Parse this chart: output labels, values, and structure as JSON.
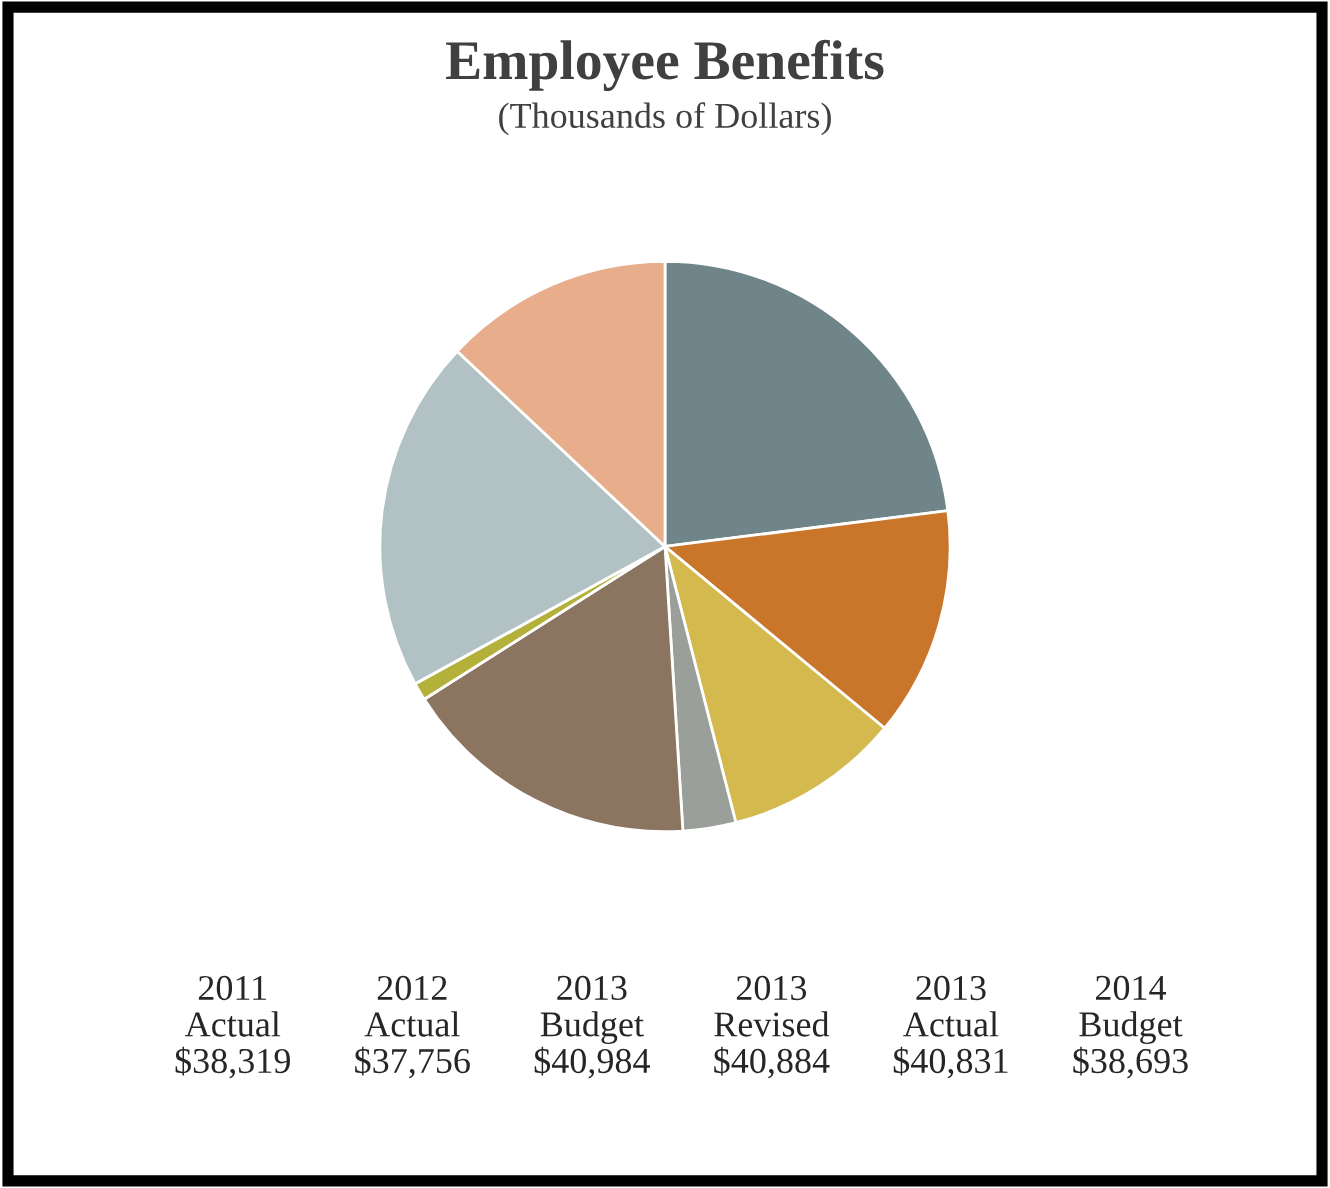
{
  "chart_data": {
    "type": "pie",
    "title": "Employee Benefits",
    "subtitle": "(Thousands of Dollars)",
    "categories": [
      null,
      null,
      null,
      null,
      null,
      null,
      null,
      null
    ],
    "values": [
      23,
      13,
      10,
      3,
      17,
      1,
      20,
      13
    ],
    "colors": [
      "#6f8589",
      "#c9762b",
      "#d4b94f",
      "#9a9f9a",
      "#8b7560",
      "#b3b13a",
      "#b2c2c4",
      "#e8ae8c"
    ],
    "annotations": [
      "2011\nActual\n$38,319",
      "2012\nActual\n$37,756",
      "2013\nBudget\n$40,984",
      "2013\nRevised\n$40,884",
      "2013\nActual\n$40,831",
      "2014\nBudget\n$38,693"
    ]
  }
}
